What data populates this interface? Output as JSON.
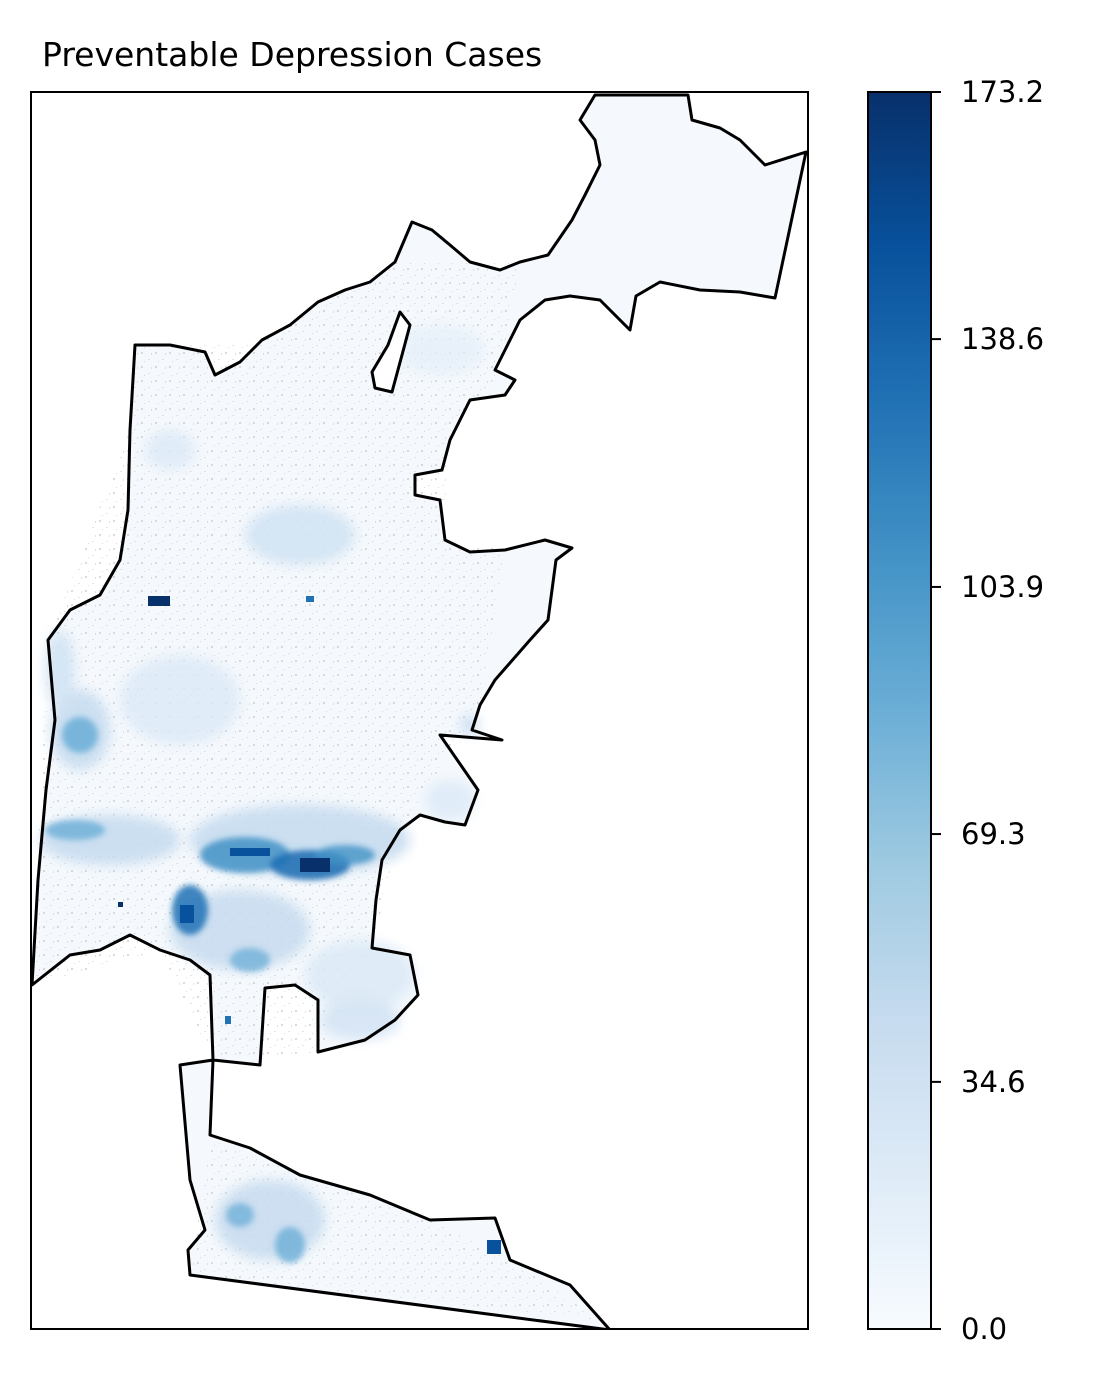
{
  "map": {
    "title": "Preventable Depression Cases",
    "colormap": "Blues",
    "boundary_color": "#000000",
    "data_colors": {
      "min": "#f7fbff",
      "light": "#c6dbef",
      "mid": "#6baed6",
      "dark": "#2171b5",
      "max": "#08306b"
    }
  },
  "colorbar": {
    "min": 0.0,
    "max": 173.2,
    "ticks": [
      {
        "value": 0.0,
        "label": "0.0"
      },
      {
        "value": 34.6,
        "label": "34.6"
      },
      {
        "value": 69.3,
        "label": "69.3"
      },
      {
        "value": 103.9,
        "label": "103.9"
      },
      {
        "value": 138.6,
        "label": "138.6"
      },
      {
        "value": 173.2,
        "label": "173.2"
      }
    ]
  }
}
